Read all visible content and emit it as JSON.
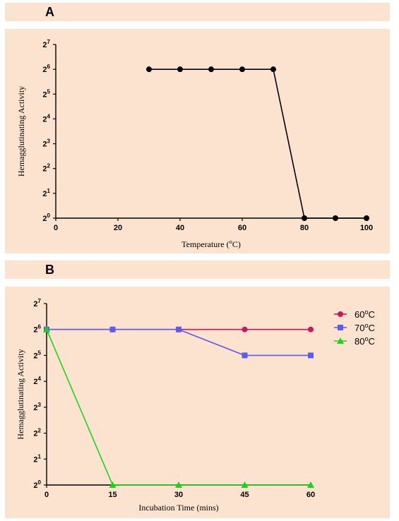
{
  "panels": [
    {
      "letter": "A",
      "chart_data": {
        "type": "line",
        "title": "",
        "xlabel": "Temperature (°C)",
        "ylabel": "Hemagglutinating Activity",
        "x_ticks": [
          0,
          20,
          40,
          60,
          80,
          100
        ],
        "xlim": [
          0,
          100
        ],
        "y_exponent_ticks": [
          0,
          1,
          2,
          3,
          4,
          5,
          6,
          7
        ],
        "ylim_exponent": [
          0,
          7
        ],
        "y_scale": "log2",
        "grid": false,
        "legend": "none",
        "series": [
          {
            "color": "#000000",
            "marker": "circle",
            "x": [
              30,
              40,
              50,
              60,
              70,
              80,
              90,
              100
            ],
            "y_exponent": [
              6,
              6,
              6,
              6,
              6,
              0,
              0,
              0
            ]
          }
        ]
      }
    },
    {
      "letter": "B",
      "chart_data": {
        "type": "line",
        "title": "",
        "xlabel": "Incubation Time (mins)",
        "ylabel": "Hemagglutinating Activity",
        "x_ticks": [
          0,
          15,
          30,
          45,
          60
        ],
        "xlim": [
          0,
          60
        ],
        "y_exponent_ticks": [
          0,
          1,
          2,
          3,
          4,
          5,
          6,
          7
        ],
        "ylim_exponent": [
          0,
          7
        ],
        "y_scale": "log2",
        "grid": false,
        "legend": "right",
        "series": [
          {
            "name": "60°C",
            "color": "#c8175c",
            "marker": "circle",
            "x": [
              0,
              15,
              30,
              45,
              60
            ],
            "y_exponent": [
              6,
              6,
              6,
              6,
              6
            ]
          },
          {
            "name": "70°C",
            "color": "#5b5bf0",
            "marker": "square",
            "x": [
              0,
              15,
              30,
              45,
              60
            ],
            "y_exponent": [
              6,
              6,
              6,
              5,
              5
            ]
          },
          {
            "name": "80°C",
            "color": "#19d419",
            "marker": "triangle",
            "x": [
              0,
              15,
              30,
              45,
              60
            ],
            "y_exponent": [
              6,
              0,
              0,
              0,
              0
            ]
          }
        ]
      }
    }
  ]
}
